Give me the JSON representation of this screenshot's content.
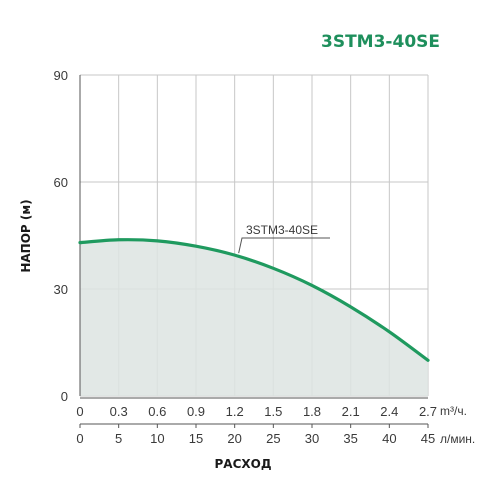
{
  "colors": {
    "curve": "#1f9a5f",
    "fill": "#dde4e2",
    "grid": "#c7c7c7",
    "axis": "#555555",
    "title": "#1e8f5c"
  },
  "chart_data": {
    "type": "area",
    "title": "3STM3-40SE",
    "ylabel": "НАПОР (м)",
    "xlabel": "РАСХОД",
    "ylim": [
      0,
      90
    ],
    "yticks": [
      0,
      30,
      60,
      90
    ],
    "xlim": [
      0,
      2.7
    ],
    "x_primary": {
      "unit": "m³/ч.",
      "ticks": [
        "0",
        "0.3",
        "0.6",
        "0.9",
        "1.2",
        "1.5",
        "1.8",
        "2.1",
        "2.4",
        "2.7"
      ]
    },
    "x_secondary": {
      "unit": "л/мин.",
      "ticks": [
        "0",
        "5",
        "10",
        "15",
        "20",
        "25",
        "30",
        "35",
        "40",
        "45"
      ]
    },
    "grid": true,
    "series": [
      {
        "name": "3STM3-40SE",
        "x": [
          0,
          0.3,
          0.6,
          0.9,
          1.2,
          1.5,
          1.8,
          2.1,
          2.4,
          2.7
        ],
        "values": [
          43,
          43.8,
          43.5,
          42,
          39.5,
          35.8,
          31,
          25,
          18,
          10
        ]
      }
    ]
  }
}
